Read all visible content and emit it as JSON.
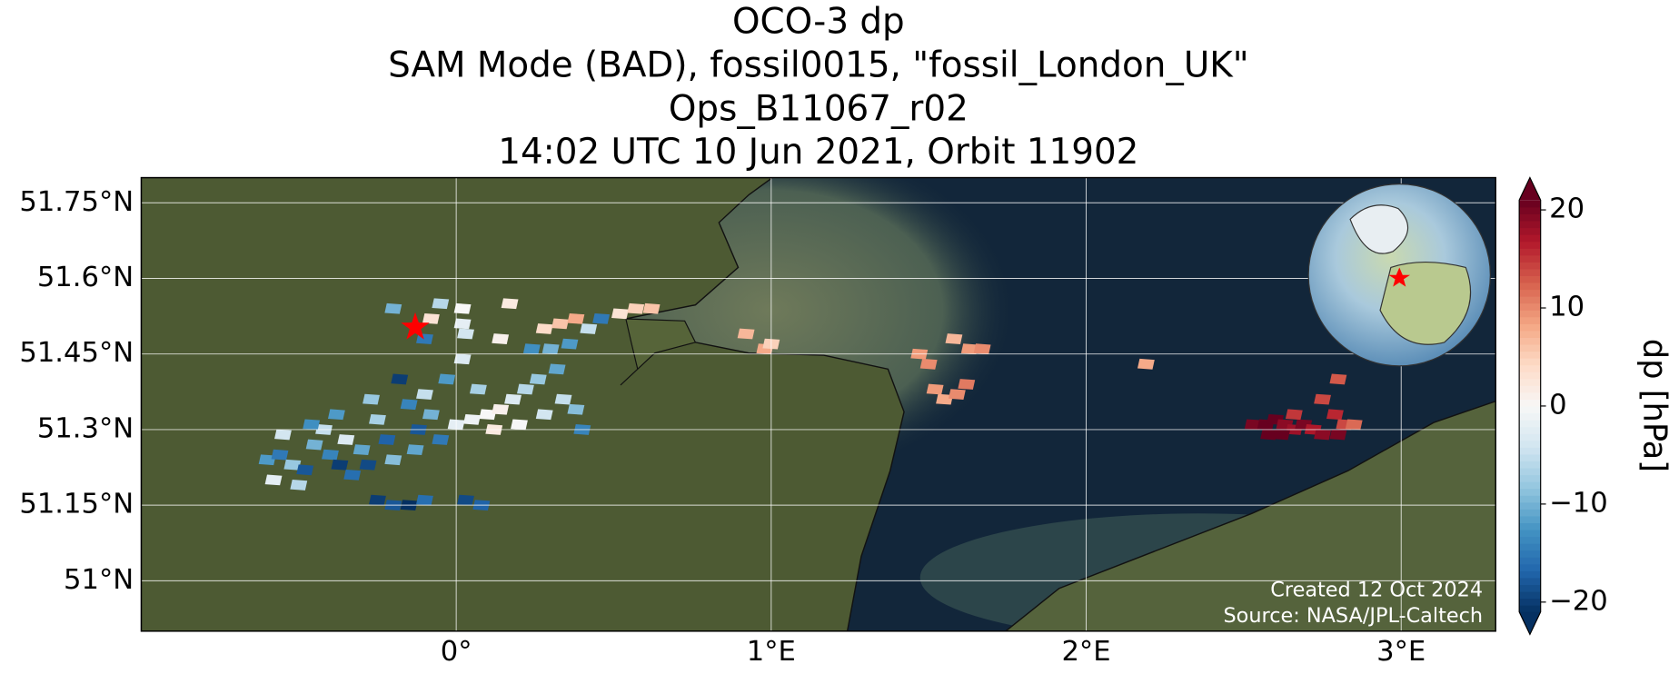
{
  "chart_data": {
    "type": "map",
    "title": [
      "OCO-3 dp",
      "SAM Mode (BAD), fossil0015, \"fossil_London_UK\"",
      "Ops_B11067_r02",
      "14:02 UTC 10 Jun 2021, Orbit 11902"
    ],
    "xlim": [
      -1.0,
      3.3
    ],
    "ylim": [
      50.9,
      51.8
    ],
    "xticks": [
      {
        "value": 0,
        "label": "0°"
      },
      {
        "value": 1,
        "label": "1°E"
      },
      {
        "value": 2,
        "label": "2°E"
      },
      {
        "value": 3,
        "label": "3°E"
      }
    ],
    "yticks": [
      {
        "value": 51.0,
        "label": "51°N"
      },
      {
        "value": 51.15,
        "label": "51.15°N"
      },
      {
        "value": 51.3,
        "label": "51.3°N"
      },
      {
        "value": 51.45,
        "label": "51.45°N"
      },
      {
        "value": 51.6,
        "label": "51.6°N"
      },
      {
        "value": 51.75,
        "label": "51.75°N"
      }
    ],
    "grid": true,
    "target": {
      "x": -0.13,
      "y": 51.503,
      "color": "#ff0000"
    },
    "x": [
      -0.6,
      -0.56,
      -0.52,
      -0.48,
      -0.45,
      -0.42,
      -0.4,
      -0.37,
      -0.35,
      -0.33,
      -0.58,
      -0.5,
      -0.46,
      -0.3,
      -0.28,
      -0.25,
      -0.22,
      -0.2,
      -0.55,
      -0.38,
      -0.27,
      -0.15,
      -0.12,
      -0.1,
      -0.08,
      -0.05,
      -0.03,
      -0.18,
      -0.13,
      -0.25,
      -0.2,
      -0.15,
      -0.1,
      0.03,
      0.08,
      0.0,
      0.05,
      0.1,
      0.14,
      0.18,
      0.22,
      0.26,
      0.28,
      0.2,
      0.12,
      0.32,
      0.34,
      0.38,
      0.4,
      0.07,
      0.02,
      0.3,
      0.36,
      -0.2,
      -0.05,
      0.02,
      0.17,
      0.03,
      0.14,
      -0.1,
      0.24,
      0.02,
      -0.08,
      0.28,
      0.33,
      0.38,
      0.46,
      0.52,
      0.57,
      0.62,
      0.42,
      0.92,
      0.98,
      1.0,
      1.47,
      1.5,
      1.52,
      1.55,
      1.59,
      1.62,
      1.58,
      1.63,
      1.67,
      2.19,
      2.53,
      2.57,
      2.6,
      2.63,
      2.66,
      2.69,
      2.72,
      2.75,
      2.58,
      2.62,
      2.66,
      2.79,
      2.82,
      2.85,
      2.75,
      2.8,
      2.8
    ],
    "y": [
      51.24,
      51.25,
      51.23,
      51.22,
      51.27,
      51.3,
      51.25,
      51.23,
      51.28,
      51.21,
      51.2,
      51.19,
      51.31,
      51.26,
      51.23,
      51.32,
      51.28,
      51.24,
      51.29,
      51.33,
      51.36,
      51.35,
      51.3,
      51.37,
      51.33,
      51.28,
      51.4,
      51.4,
      51.26,
      51.16,
      51.15,
      51.15,
      51.16,
      51.16,
      51.15,
      51.31,
      51.32,
      51.33,
      51.34,
      51.36,
      51.38,
      51.4,
      51.33,
      51.31,
      51.3,
      51.42,
      51.36,
      51.34,
      51.3,
      51.38,
      51.44,
      51.46,
      51.47,
      51.54,
      51.55,
      51.54,
      51.55,
      51.49,
      51.48,
      51.48,
      51.46,
      51.51,
      51.52,
      51.5,
      51.51,
      51.52,
      51.52,
      51.53,
      51.54,
      51.54,
      51.5,
      51.49,
      51.46,
      51.47,
      51.45,
      51.43,
      51.38,
      51.36,
      51.37,
      51.39,
      51.48,
      51.46,
      51.46,
      51.43,
      51.31,
      51.31,
      51.32,
      51.31,
      51.3,
      51.31,
      51.3,
      51.29,
      51.29,
      51.29,
      51.33,
      51.33,
      51.31,
      51.31,
      51.36,
      51.4,
      51.29
    ],
    "values": [
      -12,
      -15,
      -8,
      -18,
      -10,
      -5,
      -14,
      -20,
      -3,
      -16,
      -2,
      -6,
      -13,
      -11,
      -19,
      -7,
      -17,
      -9,
      -4,
      -12,
      -8,
      -14,
      -18,
      -5,
      -10,
      -15,
      -12,
      -20,
      -11,
      -20,
      -18,
      -21,
      -16,
      -19,
      -17,
      -2,
      -1,
      0,
      1,
      -3,
      -6,
      -8,
      -4,
      0,
      2,
      -11,
      -5,
      -9,
      -14,
      -7,
      -3,
      -10,
      -12,
      -10,
      -6,
      0,
      2,
      -4,
      1,
      -15,
      -13,
      -2,
      3,
      4,
      6,
      8,
      -15,
      3,
      5,
      6,
      -5,
      7,
      8,
      5,
      9,
      10,
      9,
      8,
      10,
      11,
      7,
      9,
      10,
      8,
      20,
      22,
      21,
      19,
      18,
      20,
      17,
      19,
      22,
      21,
      15,
      16,
      14,
      12,
      14,
      13,
      20
    ],
    "colorbar": {
      "label": "dp [hPa]",
      "colormap": "RdBu_r",
      "clim": [
        -21,
        21
      ],
      "ticks": [
        {
          "value": -20,
          "label": "−20"
        },
        {
          "value": -10,
          "label": "−10"
        },
        0,
        10,
        20
      ]
    },
    "annotations": [
      "Created 12 Oct 2024",
      "Source: NASA/JPL-Caltech"
    ]
  }
}
